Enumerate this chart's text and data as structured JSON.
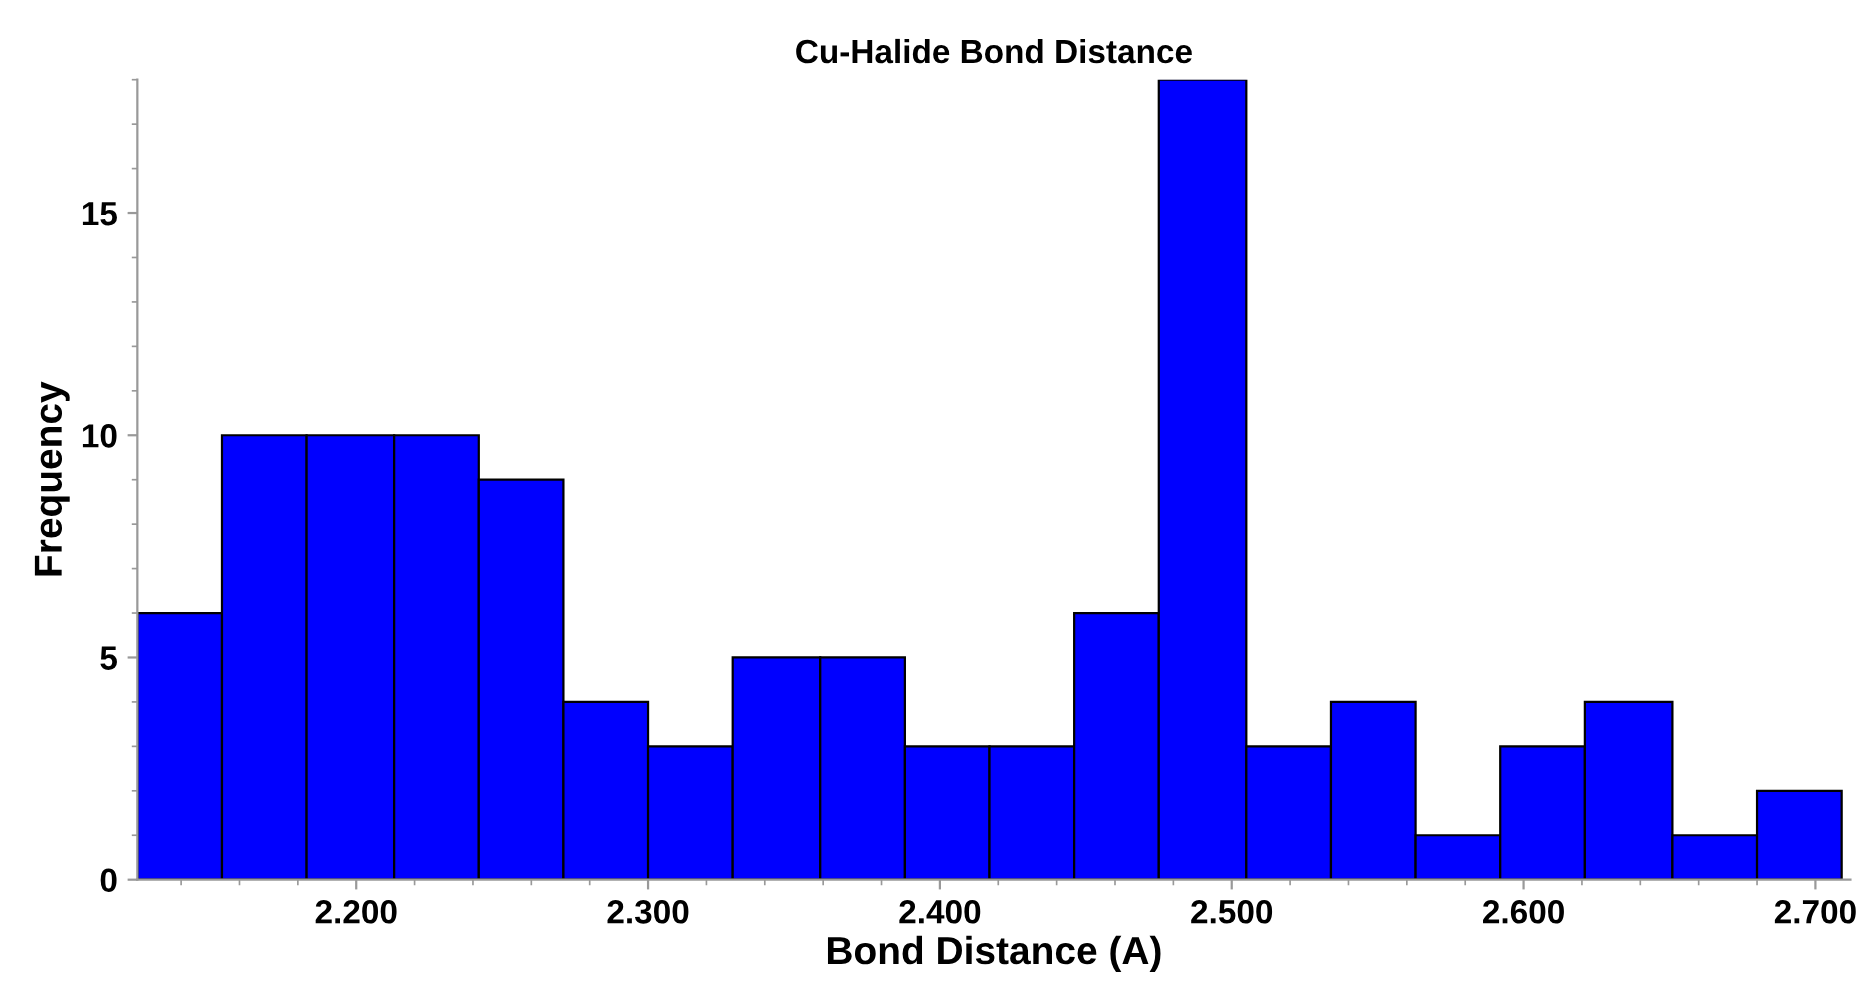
{
  "chart_data": {
    "type": "histogram",
    "title": "Cu-Halide Bond Distance",
    "xlabel": "Bond Distance (A)",
    "ylabel": "Frequency",
    "bins": [
      2.125,
      2.154,
      2.183,
      2.213,
      2.242,
      2.271,
      2.3,
      2.329,
      2.359,
      2.388,
      2.417,
      2.446,
      2.475,
      2.505,
      2.534,
      2.563,
      2.592,
      2.621,
      2.651,
      2.68,
      2.709
    ],
    "values": [
      6,
      10,
      10,
      10,
      9,
      4,
      3,
      5,
      5,
      3,
      3,
      6,
      18,
      3,
      4,
      1,
      3,
      4,
      1,
      2
    ],
    "color": "#0000ff",
    "xlim": [
      2.125,
      2.712
    ],
    "xticks": [
      {
        "value": 2.2,
        "label": "2.200"
      },
      {
        "value": 2.3,
        "label": "2.300"
      },
      {
        "value": 2.4,
        "label": "2.400"
      },
      {
        "value": 2.5,
        "label": "2.500"
      },
      {
        "value": 2.6,
        "label": "2.600"
      },
      {
        "value": 2.7,
        "label": "2.700"
      }
    ],
    "ylim": [
      0,
      18
    ],
    "yticks": [
      0,
      5,
      10,
      15
    ],
    "grid": false
  }
}
